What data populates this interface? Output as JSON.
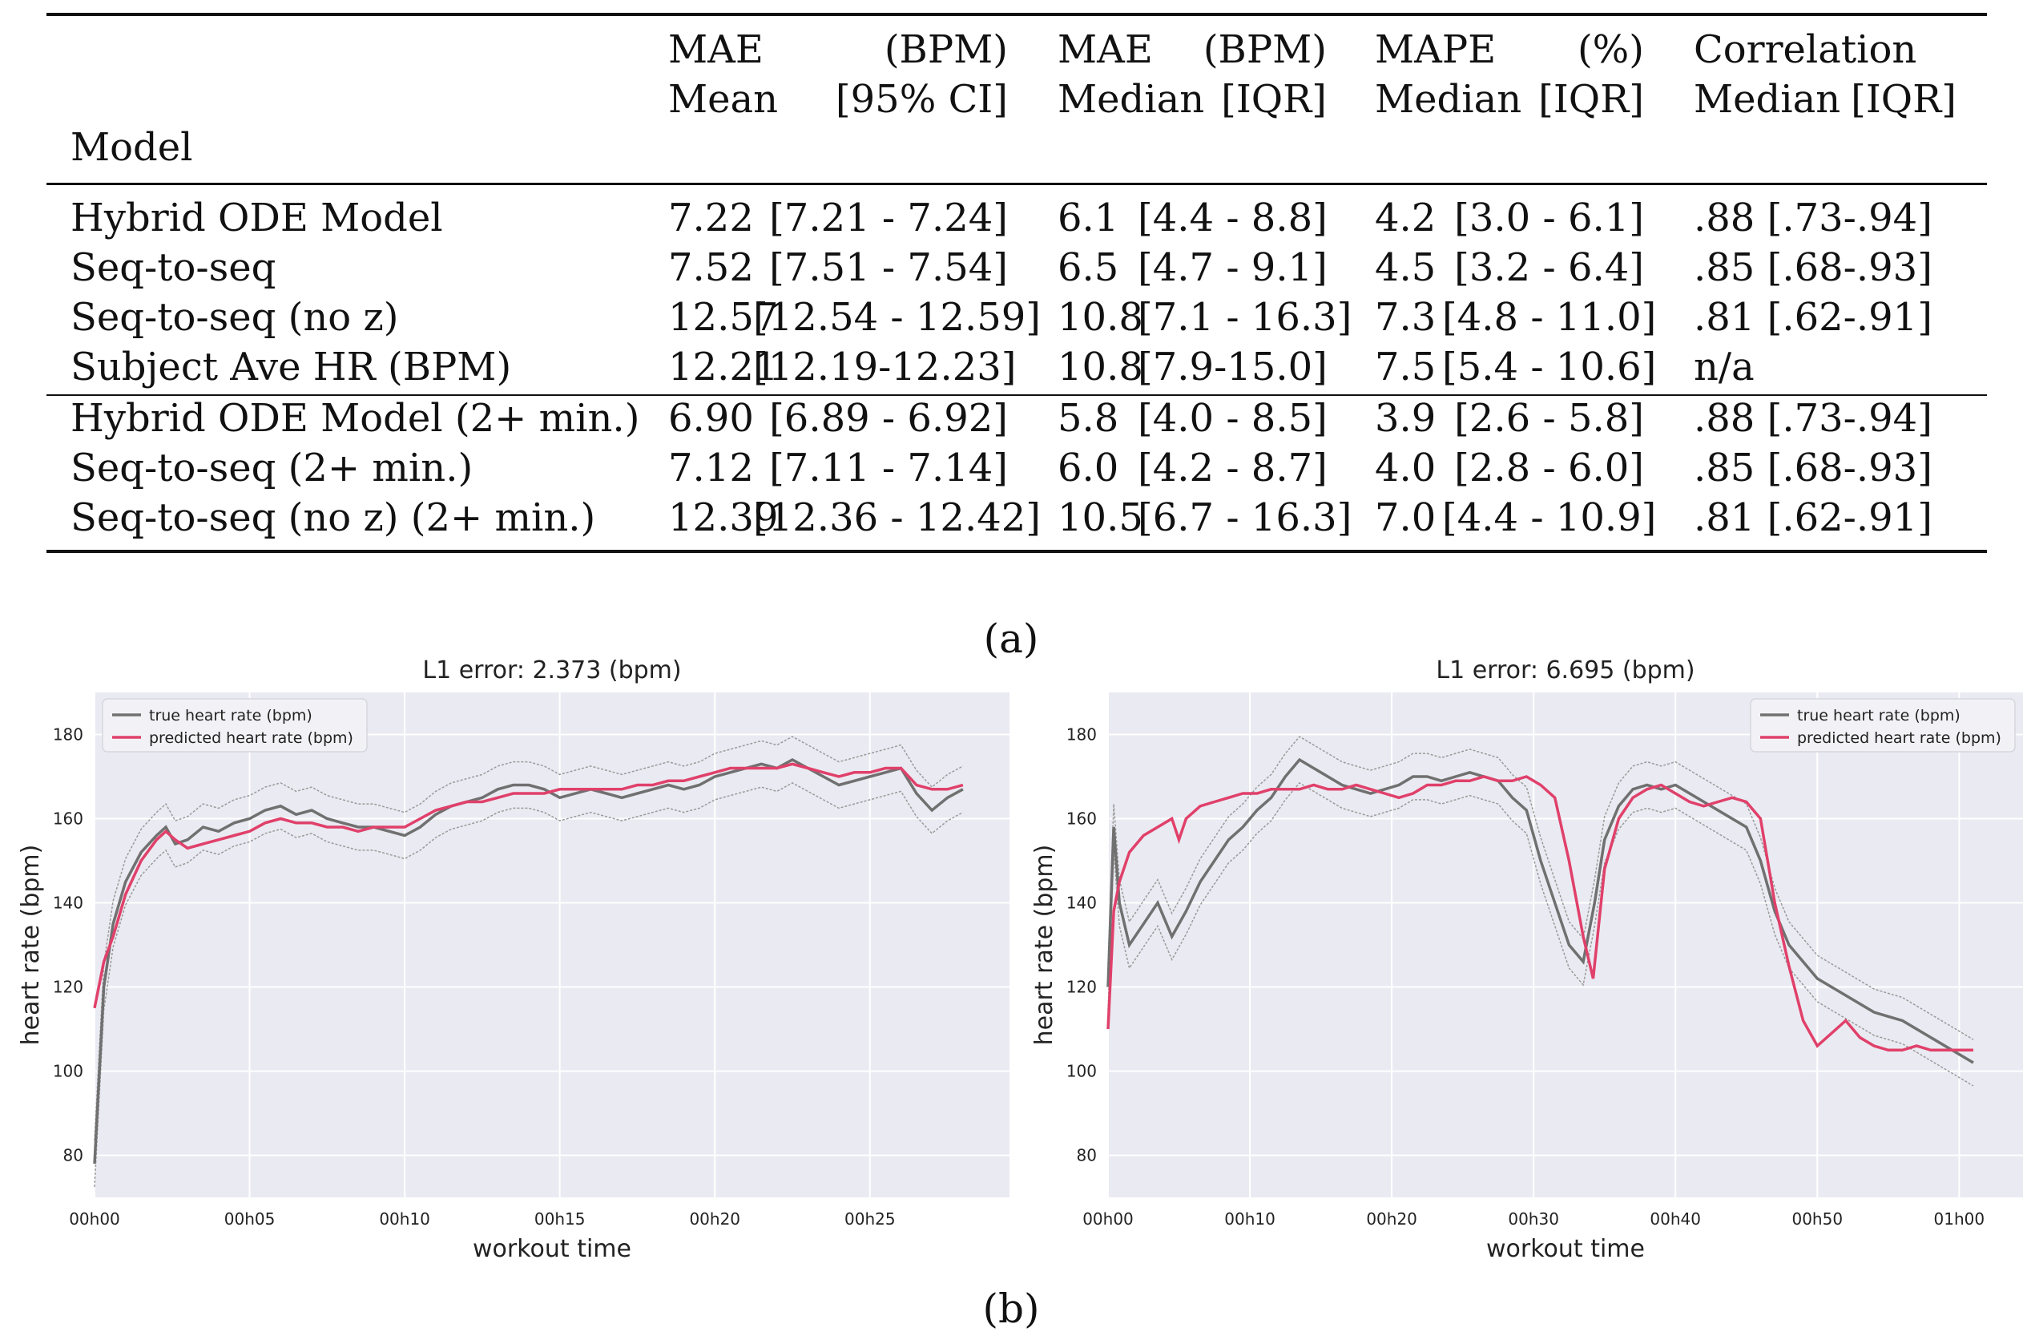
{
  "table": {
    "header": {
      "model": "Model",
      "mae_mean_top": [
        "MAE",
        "(BPM)"
      ],
      "mae_mean_bottom": [
        "Mean",
        "[95% CI]"
      ],
      "mae_median_top": [
        "MAE",
        "(BPM)"
      ],
      "mae_median_bottom": [
        "Median",
        "[IQR]"
      ],
      "mape_top": [
        "MAPE",
        "(%)"
      ],
      "mape_bottom": [
        "Median",
        "[IQR]"
      ],
      "corr_top": "Correlation",
      "corr_bottom": [
        "Median",
        "[IQR]"
      ]
    },
    "rows": [
      {
        "model": "Hybrid ODE Model",
        "mae_mean": "7.22",
        "mae_ci": "[7.21 - 7.24]",
        "mae_med": "6.1",
        "mae_iqr": "[4.4 - 8.8]",
        "mape_med": "4.2",
        "mape_iqr": "[3.0 - 6.1]",
        "corr": ".88 [.73-.94]"
      },
      {
        "model": "Seq-to-seq",
        "mae_mean": "7.52",
        "mae_ci": "[7.51 - 7.54]",
        "mae_med": "6.5",
        "mae_iqr": "[4.7 - 9.1]",
        "mape_med": "4.5",
        "mape_iqr": "[3.2 - 6.4]",
        "corr": ".85 [.68-.93]"
      },
      {
        "model": "Seq-to-seq (no z)",
        "mae_mean": "12.57",
        "mae_ci": "[12.54 - 12.59]",
        "mae_med": "10.8",
        "mae_iqr": "[7.1 - 16.3]",
        "mape_med": "7.3",
        "mape_iqr": "[4.8 - 11.0]",
        "corr": ".81 [.62-.91]"
      },
      {
        "model": "Subject Ave HR (BPM)",
        "mae_mean": "12.21",
        "mae_ci": "[12.19-12.23]",
        "mae_med": "10.8",
        "mae_iqr": "[7.9-15.0]",
        "mape_med": "7.5",
        "mape_iqr": "[5.4 - 10.6]",
        "corr": "n/a"
      },
      {
        "model": "Hybrid ODE Model (2+ min.)",
        "mae_mean": "6.90",
        "mae_ci": "[6.89 - 6.92]",
        "mae_med": "5.8",
        "mae_iqr": "[4.0 - 8.5]",
        "mape_med": "3.9",
        "mape_iqr": "[2.6 - 5.8]",
        "corr": ".88 [.73-.94]"
      },
      {
        "model": "Seq-to-seq (2+ min.)",
        "mae_mean": "7.12",
        "mae_ci": "[7.11 - 7.14]",
        "mae_med": "6.0",
        "mae_iqr": "[4.2 - 8.7]",
        "mape_med": "4.0",
        "mape_iqr": "[2.8 - 6.0]",
        "corr": ".85 [.68-.93]"
      },
      {
        "model": "Seq-to-seq (no z) (2+ min.)",
        "mae_mean": "12.39",
        "mae_ci": "[12.36 - 12.42]",
        "mae_med": "10.5",
        "mae_iqr": "[6.7 - 16.3]",
        "mape_med": "7.0",
        "mape_iqr": "[4.4 - 10.9]",
        "corr": ".81 [.62-.91]"
      }
    ]
  },
  "captions": {
    "a": "(a)",
    "b": "(b)"
  },
  "colors": {
    "true": "#707070",
    "pred": "#e0406a",
    "band": "#9a9a9a",
    "plot_bg": "#eaeaf2",
    "grid": "#ffffff"
  },
  "chart_data": [
    {
      "type": "line",
      "title": "L1 error: 2.373 (bpm)",
      "xlabel": "workout time",
      "ylabel": "heart rate (bpm)",
      "xlim": [
        0,
        29.5
      ],
      "ylim": [
        70,
        190
      ],
      "xticks": [
        0,
        5,
        10,
        15,
        20,
        25
      ],
      "xtick_labels": [
        "00h00",
        "00h05",
        "00h10",
        "00h15",
        "00h20",
        "00h25"
      ],
      "yticks": [
        80,
        100,
        120,
        140,
        160,
        180
      ],
      "legend": [
        "true heart rate (bpm)",
        "predicted heart rate (bpm)"
      ],
      "legend_position": "top-left",
      "series": [
        {
          "name": "true heart rate (bpm)",
          "x": [
            0,
            0.3,
            0.6,
            1,
            1.5,
            2,
            2.3,
            2.6,
            3,
            3.5,
            4,
            4.5,
            5,
            5.5,
            6,
            6.5,
            7,
            7.5,
            8,
            8.5,
            9,
            9.5,
            10,
            10.5,
            11,
            11.5,
            12,
            12.5,
            13,
            13.5,
            14,
            14.5,
            15,
            15.5,
            16,
            16.5,
            17,
            17.5,
            18,
            18.5,
            19,
            19.5,
            20,
            20.5,
            21,
            21.5,
            22,
            22.5,
            23,
            23.5,
            24,
            24.5,
            25,
            25.5,
            26,
            26.5,
            27,
            27.5,
            28
          ],
          "y": [
            78,
            120,
            135,
            145,
            152,
            156,
            158,
            154,
            155,
            158,
            157,
            159,
            160,
            162,
            163,
            161,
            162,
            160,
            159,
            158,
            158,
            157,
            156,
            158,
            161,
            163,
            164,
            165,
            167,
            168,
            168,
            167,
            165,
            166,
            167,
            166,
            165,
            166,
            167,
            168,
            167,
            168,
            170,
            171,
            172,
            173,
            172,
            174,
            172,
            170,
            168,
            169,
            170,
            171,
            172,
            166,
            162,
            165,
            167
          ]
        },
        {
          "name": "predicted heart rate (bpm)",
          "x": [
            0,
            0.3,
            0.6,
            1,
            1.5,
            2,
            2.3,
            2.6,
            3,
            3.5,
            4,
            4.5,
            5,
            5.5,
            6,
            6.5,
            7,
            7.5,
            8,
            8.5,
            9,
            9.5,
            10,
            10.5,
            11,
            11.5,
            12,
            12.5,
            13,
            13.5,
            14,
            14.5,
            15,
            15.5,
            16,
            16.5,
            17,
            17.5,
            18,
            18.5,
            19,
            19.5,
            20,
            20.5,
            21,
            21.5,
            22,
            22.5,
            23,
            23.5,
            24,
            24.5,
            25,
            25.5,
            26,
            26.5,
            27,
            27.5,
            28
          ],
          "y": [
            115,
            126,
            132,
            142,
            150,
            155,
            157,
            155,
            153,
            154,
            155,
            156,
            157,
            159,
            160,
            159,
            159,
            158,
            158,
            157,
            158,
            158,
            158,
            160,
            162,
            163,
            164,
            164,
            165,
            166,
            166,
            166,
            167,
            167,
            167,
            167,
            167,
            168,
            168,
            169,
            169,
            170,
            171,
            172,
            172,
            172,
            172,
            173,
            172,
            171,
            170,
            171,
            171,
            172,
            172,
            168,
            167,
            167,
            168
          ]
        }
      ]
    },
    {
      "type": "line",
      "title": "L1 error: 6.695 (bpm)",
      "xlabel": "workout time",
      "ylabel": "heart rate (bpm)",
      "xlim": [
        0,
        64.5
      ],
      "ylim": [
        70,
        190
      ],
      "xticks": [
        0,
        10,
        20,
        30,
        40,
        50,
        60
      ],
      "xtick_labels": [
        "00h00",
        "00h10",
        "00h20",
        "00h30",
        "00h40",
        "00h50",
        "01h00"
      ],
      "yticks": [
        80,
        100,
        120,
        140,
        160,
        180
      ],
      "legend": [
        "true heart rate (bpm)",
        "predicted heart rate (bpm)"
      ],
      "legend_position": "top-right",
      "series": [
        {
          "name": "true heart rate (bpm)",
          "x": [
            0,
            0.4,
            0.8,
            1.5,
            2.5,
            3.5,
            4.5,
            5.5,
            6.5,
            7.5,
            8.5,
            9.5,
            10.5,
            11.5,
            12.5,
            13.5,
            14.5,
            15.5,
            16.5,
            17.5,
            18.5,
            19.5,
            20.5,
            21.5,
            22.5,
            23.5,
            24.5,
            25.5,
            26.5,
            27.5,
            28.5,
            29.5,
            30.5,
            31.5,
            32.5,
            33.5,
            34.3,
            35,
            36,
            37,
            38,
            39,
            40,
            41,
            42,
            43,
            44,
            45,
            46,
            47,
            48,
            49,
            50,
            51,
            52,
            53,
            54,
            55,
            56,
            57,
            58,
            59,
            60,
            61
          ],
          "y": [
            120,
            158,
            140,
            130,
            135,
            140,
            132,
            138,
            145,
            150,
            155,
            158,
            162,
            165,
            170,
            174,
            172,
            170,
            168,
            167,
            166,
            167,
            168,
            170,
            170,
            169,
            170,
            171,
            170,
            169,
            165,
            162,
            150,
            140,
            130,
            126,
            140,
            155,
            163,
            167,
            168,
            167,
            168,
            166,
            164,
            162,
            160,
            158,
            150,
            138,
            130,
            126,
            122,
            120,
            118,
            116,
            114,
            113,
            112,
            110,
            108,
            106,
            104,
            102
          ]
        },
        {
          "name": "predicted heart rate (bpm)",
          "x": [
            0,
            0.4,
            0.8,
            1.5,
            2.5,
            3.5,
            4.5,
            5,
            5.5,
            6.5,
            7.5,
            8.5,
            9.5,
            10.5,
            11.5,
            12.5,
            13.5,
            14.5,
            15.5,
            16.5,
            17.5,
            18.5,
            19.5,
            20.5,
            21.5,
            22.5,
            23.5,
            24.5,
            25.5,
            26.5,
            27.5,
            28.5,
            29.5,
            30.5,
            31.5,
            32.5,
            33.5,
            34.2,
            35,
            36,
            37,
            38,
            39,
            40,
            41,
            42,
            43,
            44,
            45,
            46,
            47,
            48,
            49,
            50,
            51,
            52,
            53,
            54,
            55,
            56,
            57,
            58,
            59,
            60,
            61
          ],
          "y": [
            110,
            138,
            145,
            152,
            156,
            158,
            160,
            155,
            160,
            163,
            164,
            165,
            166,
            166,
            167,
            167,
            167,
            168,
            167,
            167,
            168,
            167,
            166,
            165,
            166,
            168,
            168,
            169,
            169,
            170,
            169,
            169,
            170,
            168,
            165,
            150,
            132,
            122,
            148,
            160,
            165,
            167,
            168,
            166,
            164,
            163,
            164,
            165,
            164,
            160,
            140,
            125,
            112,
            106,
            109,
            112,
            108,
            106,
            105,
            105,
            106,
            105,
            105,
            105,
            105
          ]
        }
      ]
    }
  ]
}
